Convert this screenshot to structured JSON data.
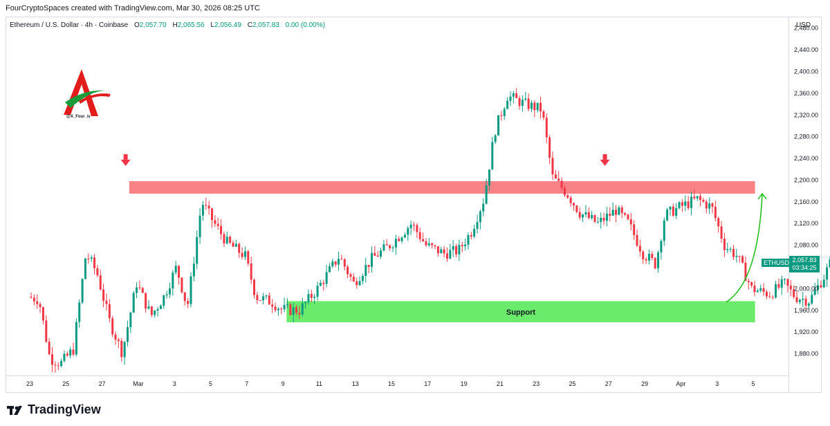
{
  "header": {
    "attribution": "FourCryptoSpaces created with TradingView.com, Mar 30, 2026 08:25 UTC"
  },
  "legend": {
    "symbol": "Ethereum / U.S. Dollar · 4h · Coinbase",
    "open_key": "O",
    "open": "2,057.70",
    "high_key": "H",
    "high": "2,065.56",
    "low_key": "L",
    "low": "2,056.49",
    "close_key": "C",
    "close": "2,057.83",
    "change": "0.00 (0.00%)"
  },
  "currency": "USD",
  "price_tag": {
    "symbol": "ETHUSD",
    "price": "2,057.83",
    "countdown": "03:34:25"
  },
  "logo": {
    "handle": "@X_Four_iv"
  },
  "brand": {
    "name": "TradingView"
  },
  "colors": {
    "up": "#089981",
    "down": "#f23645",
    "resistance": "#f77c80",
    "support": "#63ea63",
    "arrow": "#22c022"
  },
  "chart_data": {
    "type": "candlestick",
    "title": "Ethereum / U.S. Dollar · 4h · Coinbase",
    "ylim": [
      1840,
      2500
    ],
    "yticks": [
      1880,
      1920,
      1960,
      2000,
      2040,
      2080,
      2120,
      2160,
      2200,
      2240,
      2280,
      2320,
      2360,
      2400,
      2440,
      2480
    ],
    "ytick_labels": [
      "1,880.00",
      "1,920.00",
      "1,960.00",
      "2,000.00",
      "2,040.00",
      "2,080.00",
      "2,120.00",
      "2,160.00",
      "2,200.00",
      "2,240.00",
      "2,280.00",
      "2,320.00",
      "2,360.00",
      "2,400.00",
      "2,440.00",
      "2,480.00"
    ],
    "x_range_days": [
      21.3,
      36.5
    ],
    "xticks": [
      {
        "day": 23,
        "label": "23"
      },
      {
        "day": 25,
        "label": "25"
      },
      {
        "day": 27,
        "label": "27"
      },
      {
        "day": 29,
        "label": "Mar"
      },
      {
        "day": 31,
        "label": "3"
      },
      {
        "day": 33,
        "label": "5"
      },
      {
        "day": 35,
        "label": "7"
      },
      {
        "day": 37,
        "label": "9"
      },
      {
        "day": 39,
        "label": "11"
      },
      {
        "day": 41,
        "label": "13"
      },
      {
        "day": 43,
        "label": "15"
      },
      {
        "day": 45,
        "label": "17"
      },
      {
        "day": 47,
        "label": "19"
      },
      {
        "day": 49,
        "label": "21"
      },
      {
        "day": 51,
        "label": "23"
      },
      {
        "day": 53,
        "label": "25"
      },
      {
        "day": 55,
        "label": "27"
      },
      {
        "day": 57,
        "label": "29"
      },
      {
        "day": 59,
        "label": "Apr"
      },
      {
        "day": 61,
        "label": "3"
      },
      {
        "day": 63,
        "label": "5"
      }
    ],
    "price_path": [
      [
        0,
        1985
      ],
      [
        0.6,
        1980
      ],
      [
        1.2,
        1872
      ],
      [
        1.8,
        1862
      ],
      [
        2.5,
        1888
      ],
      [
        3.2,
        2065
      ],
      [
        3.8,
        2030
      ],
      [
        4.5,
        1940
      ],
      [
        5.2,
        1882
      ],
      [
        6,
        2010
      ],
      [
        6.8,
        1950
      ],
      [
        7.5,
        1985
      ],
      [
        8.2,
        2040
      ],
      [
        8.8,
        1965
      ],
      [
        9.6,
        2160
      ],
      [
        10.3,
        2120
      ],
      [
        11,
        2085
      ],
      [
        12,
        2060
      ],
      [
        12.6,
        1985
      ],
      [
        13.5,
        1975
      ],
      [
        14,
        1962
      ],
      [
        15,
        1960
      ],
      [
        16,
        2000
      ],
      [
        17.2,
        2060
      ],
      [
        18,
        2010
      ],
      [
        19,
        2055
      ],
      [
        20,
        2080
      ],
      [
        21.2,
        2120
      ],
      [
        22,
        2080
      ],
      [
        23,
        2065
      ],
      [
        23.8,
        2070
      ],
      [
        24.5,
        2105
      ],
      [
        25.2,
        2165
      ],
      [
        25.8,
        2290
      ],
      [
        26.5,
        2355
      ],
      [
        27.5,
        2340
      ],
      [
        28.4,
        2330
      ],
      [
        29,
        2205
      ],
      [
        29.8,
        2175
      ],
      [
        30.5,
        2140
      ],
      [
        31.5,
        2120
      ],
      [
        32.5,
        2145
      ],
      [
        33.2,
        2120
      ],
      [
        34,
        2065
      ],
      [
        34.7,
        2045
      ],
      [
        35.2,
        2135
      ],
      [
        36,
        2150
      ],
      [
        37,
        2165
      ],
      [
        37.8,
        2150
      ],
      [
        38.5,
        2080
      ],
      [
        39.2,
        2060
      ],
      [
        40,
        2000
      ],
      [
        41,
        1990
      ],
      [
        41.8,
        2010
      ],
      [
        42.4,
        1985
      ],
      [
        43.2,
        1978
      ],
      [
        44,
        2022
      ],
      [
        44.5,
        2057.83
      ]
    ],
    "open": 2057.7,
    "high": 2065.56,
    "low": 2056.49,
    "close": 2057.83,
    "zones": [
      {
        "label": "",
        "type": "resistance",
        "from": 2175,
        "to": 2198,
        "x_start": 5.5,
        "x_end": 40.1
      },
      {
        "label": "Support",
        "type": "support",
        "from": 1938,
        "to": 1977,
        "x_start": 14.2,
        "x_end": 40.1
      }
    ],
    "markers": [
      {
        "type": "down-arrow",
        "x": 5.3,
        "price": 2230
      },
      {
        "type": "down-arrow",
        "x": 31.8,
        "price": 2230
      }
    ],
    "projection": {
      "from": [
        38.5,
        1975
      ],
      "to": [
        40.5,
        2175
      ]
    }
  }
}
